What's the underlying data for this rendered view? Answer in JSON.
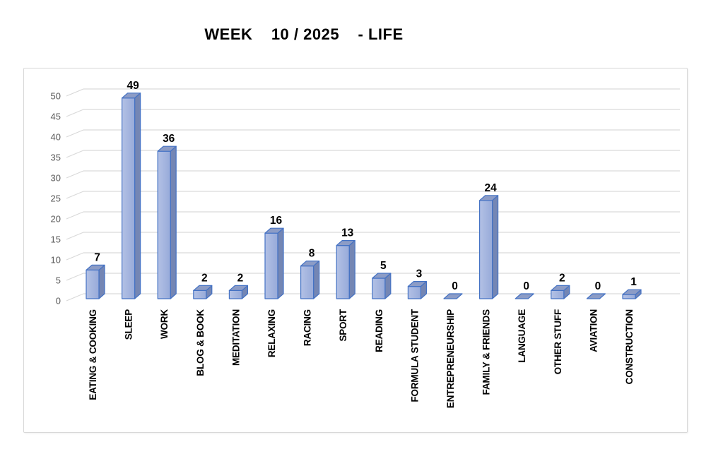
{
  "title_display": "WEEK    10 / 2025    - LIFE",
  "colors": {
    "bar_front_light": "#b3c1e5",
    "bar_front_dark": "#97aad9",
    "bar_top": "#8c9cc6",
    "bar_side": "#7486b4",
    "bar_border": "#4472c4",
    "gridline": "#d9d9d9",
    "axis_text": "#595959",
    "label_text": "#000000",
    "frame_border": "#d8d8d8",
    "background": "#ffffff"
  },
  "chart_data": {
    "type": "bar",
    "style": "3d-column",
    "title": "WEEK 10 / 2025 - LIFE",
    "categories": [
      "EATING & COOKING",
      "SLEEP",
      "WORK",
      "BLOG & BOOK",
      "MEDITATION",
      "RELAXING",
      "RACING",
      "SPORT",
      "READING",
      "FORMULA STUDENT",
      "ENTREPRENEURSHIP",
      "FAMILY & FRIENDS",
      "LANGUAGE",
      "OTHER STUFF",
      "AVIATION",
      "CONSTRUCTION"
    ],
    "values": [
      7,
      49,
      36,
      2,
      2,
      16,
      8,
      13,
      5,
      3,
      0,
      24,
      0,
      2,
      0,
      1
    ],
    "xlabel": "",
    "ylabel": "",
    "ylim": [
      0,
      50
    ],
    "ytick_step": 5,
    "yticks": [
      0,
      5,
      10,
      15,
      20,
      25,
      30,
      35,
      40,
      45,
      50
    ],
    "grid": true,
    "legend": false,
    "data_labels": true
  }
}
